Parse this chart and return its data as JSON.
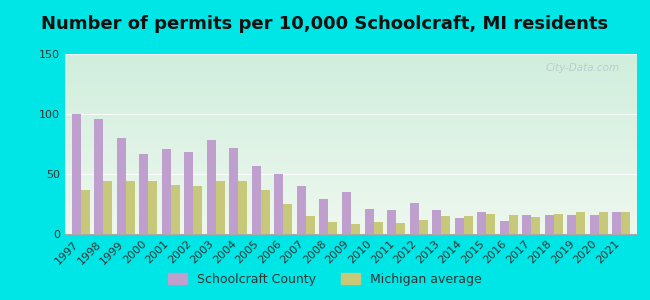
{
  "title": "Number of permits per 10,000 Schoolcraft, MI residents",
  "years": [
    1997,
    1998,
    1999,
    2000,
    2001,
    2002,
    2003,
    2004,
    2005,
    2006,
    2007,
    2008,
    2009,
    2010,
    2011,
    2012,
    2013,
    2014,
    2015,
    2016,
    2017,
    2018,
    2019,
    2020,
    2021
  ],
  "schoolcraft": [
    100,
    96,
    80,
    67,
    71,
    68,
    78,
    72,
    57,
    50,
    40,
    29,
    35,
    21,
    20,
    26,
    20,
    13,
    18,
    11,
    16,
    16,
    16,
    16,
    18
  ],
  "michigan": [
    37,
    44,
    44,
    44,
    41,
    40,
    44,
    44,
    37,
    25,
    15,
    10,
    8,
    10,
    9,
    12,
    15,
    15,
    17,
    16,
    14,
    17,
    18,
    18,
    18
  ],
  "schoolcraft_color": "#bf9fce",
  "michigan_color": "#c8c87a",
  "background_outer": "#00e5e5",
  "grad_top": "#d0eedd",
  "grad_bottom": "#eef8ee",
  "ylim": [
    0,
    150
  ],
  "yticks": [
    0,
    50,
    100,
    150
  ],
  "bar_width": 0.4,
  "legend_schoolcraft": "Schoolcraft County",
  "legend_michigan": "Michigan average",
  "title_fontsize": 13,
  "tick_fontsize": 8,
  "watermark": "City-Data.com"
}
